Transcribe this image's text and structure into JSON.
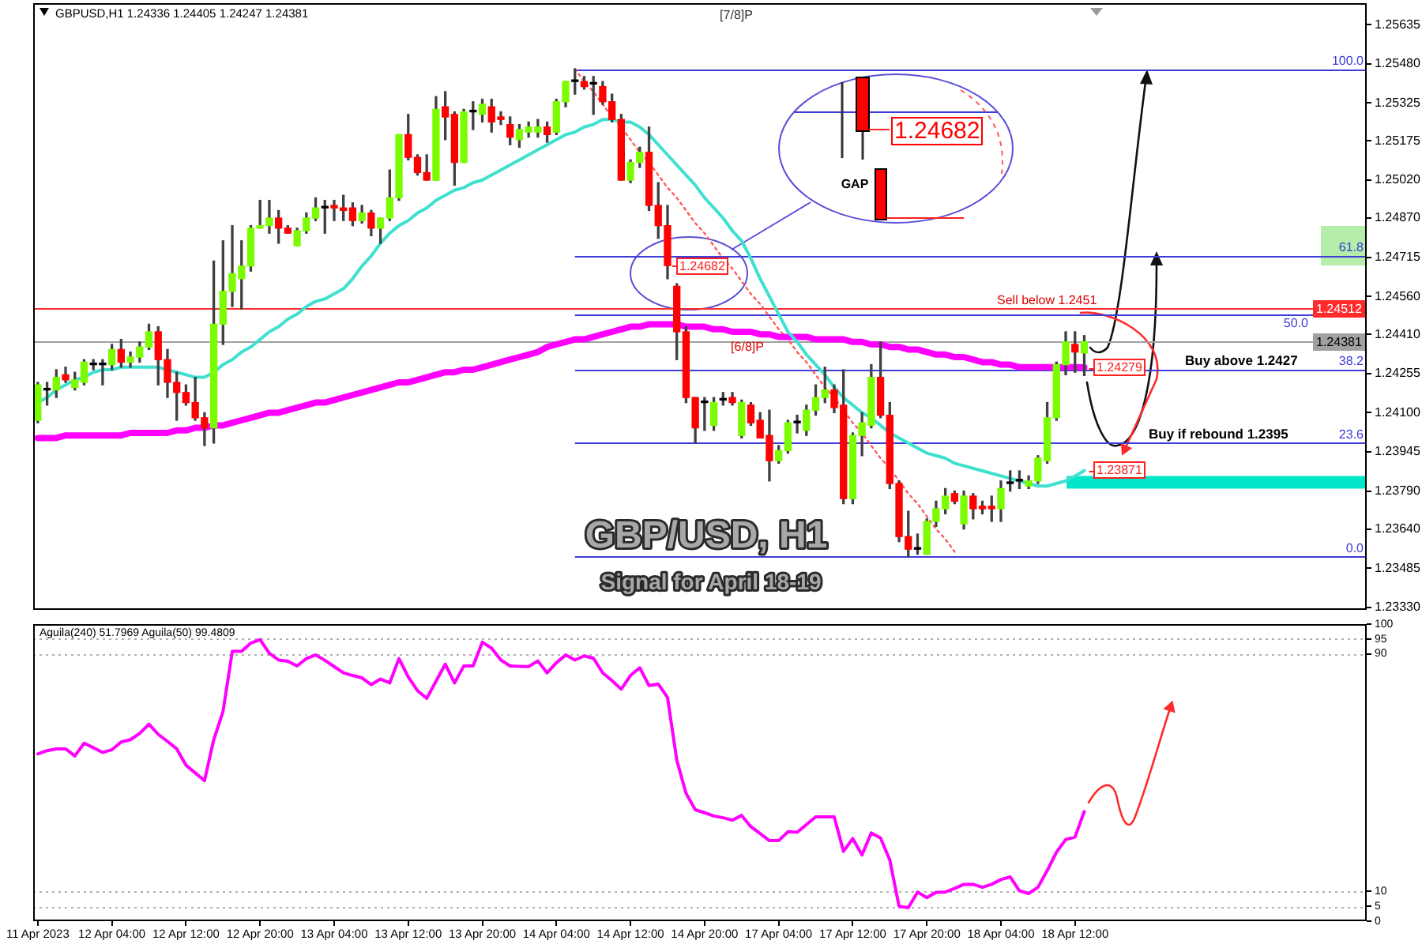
{
  "chart_data": [
    {
      "type": "candlestick",
      "title": "GBP/USD, H1",
      "subtitle": "Signal for April 18-19",
      "tick_labels": "y",
      "categories": [
        null,
        null,
        null,
        null,
        null,
        null,
        null,
        null,
        null,
        null,
        null,
        null,
        null,
        null,
        null,
        null,
        null,
        null,
        null,
        null,
        null,
        null,
        null,
        null,
        null,
        null,
        null,
        null,
        null,
        null,
        null,
        null,
        null,
        null,
        null,
        null,
        null,
        null,
        null,
        null,
        null,
        null,
        null,
        null,
        null,
        null,
        null,
        null,
        null,
        null,
        null,
        null,
        null,
        null,
        null,
        null,
        null,
        null,
        null,
        null,
        null,
        null,
        null,
        null,
        null,
        null,
        null,
        null,
        null,
        null,
        null,
        null,
        null,
        null,
        null,
        null,
        null,
        null,
        null,
        null,
        null,
        null,
        null,
        null,
        null,
        null,
        null,
        null,
        null,
        null,
        null,
        null,
        null,
        null,
        null,
        null,
        null,
        null,
        null,
        null,
        null,
        null,
        null,
        null,
        null,
        null,
        null,
        null,
        null,
        null,
        null,
        null,
        null,
        null,
        null,
        null,
        null,
        null,
        null,
        null,
        null,
        null,
        null,
        null,
        null,
        null,
        null,
        null,
        null,
        null,
        null,
        null,
        null,
        null,
        null,
        null,
        null,
        null,
        null,
        null,
        null,
        null,
        null,
        null
      ],
      "ohlc": [
        [
          1.2407,
          1.2422,
          1.2406,
          1.2421
        ],
        [
          1.2419,
          1.2422,
          1.2413,
          1.2419
        ],
        [
          1.2419,
          1.2427,
          1.2416,
          1.2424
        ],
        [
          1.2425,
          1.2428,
          1.2422,
          1.2423
        ],
        [
          1.242,
          1.2426,
          1.2419,
          1.2423
        ],
        [
          1.2422,
          1.2431,
          1.2421,
          1.243
        ],
        [
          1.2429,
          1.2431,
          1.2427,
          1.2429
        ],
        [
          1.2429,
          1.2431,
          1.2421,
          1.2429
        ],
        [
          1.2429,
          1.2437,
          1.2427,
          1.2435
        ],
        [
          1.2435,
          1.2439,
          1.2428,
          1.243
        ],
        [
          1.243,
          1.2434,
          1.2428,
          1.2432
        ],
        [
          1.2432,
          1.2438,
          1.243,
          1.2436
        ],
        [
          1.2436,
          1.2445,
          1.2435,
          1.2442
        ],
        [
          1.2442,
          1.2444,
          1.2421,
          1.2431
        ],
        [
          1.2431,
          1.2435,
          1.2416,
          1.2422
        ],
        [
          1.2422,
          1.2426,
          1.2407,
          1.2418
        ],
        [
          1.2418,
          1.2421,
          1.2413,
          1.2414
        ],
        [
          1.2414,
          1.2424,
          1.2407,
          1.2408
        ],
        [
          1.2408,
          1.241,
          1.2397,
          1.2404
        ],
        [
          1.2404,
          1.247,
          1.2398,
          1.2445
        ],
        [
          1.2445,
          1.2478,
          1.2437,
          1.2458
        ],
        [
          1.2458,
          1.2484,
          1.2452,
          1.2465
        ],
        [
          1.2463,
          1.2478,
          1.2451,
          1.2468
        ],
        [
          1.2468,
          1.2484,
          1.2466,
          1.2483
        ],
        [
          1.2483,
          1.2494,
          1.2483,
          1.2484
        ],
        [
          1.2484,
          1.2494,
          1.2481,
          1.2487
        ],
        [
          1.2487,
          1.249,
          1.2477,
          1.2483
        ],
        [
          1.2483,
          1.2484,
          1.2481,
          1.2481
        ],
        [
          1.2476,
          1.2483,
          1.2476,
          1.2482
        ],
        [
          1.2482,
          1.2489,
          1.2481,
          1.2487
        ],
        [
          1.2487,
          1.2495,
          1.2486,
          1.2491
        ],
        [
          1.2491,
          1.2494,
          1.2481,
          1.2491
        ],
        [
          1.2492,
          1.2494,
          1.2486,
          1.2491
        ],
        [
          1.2491,
          1.2496,
          1.2486,
          1.249
        ],
        [
          1.2491,
          1.2493,
          1.2484,
          1.2486
        ],
        [
          1.2486,
          1.2492,
          1.2485,
          1.2489
        ],
        [
          1.2489,
          1.249,
          1.248,
          1.2483
        ],
        [
          1.2483,
          1.2487,
          1.2477,
          1.2487
        ],
        [
          1.2487,
          1.2506,
          1.2486,
          1.2495
        ],
        [
          1.2495,
          1.252,
          1.2494,
          1.252
        ],
        [
          1.252,
          1.2528,
          1.251,
          1.2511
        ],
        [
          1.2511,
          1.2512,
          1.2504,
          1.2505
        ],
        [
          1.2505,
          1.2512,
          1.2502,
          1.2502
        ],
        [
          1.2502,
          1.2535,
          1.2502,
          1.253
        ],
        [
          1.2531,
          1.2537,
          1.2518,
          1.2527
        ],
        [
          1.2528,
          1.2529,
          1.25,
          1.2509
        ],
        [
          1.2509,
          1.253,
          1.2509,
          1.2529
        ],
        [
          1.2529,
          1.2533,
          1.2522,
          1.2529
        ],
        [
          1.2528,
          1.2534,
          1.2525,
          1.2532
        ],
        [
          1.2531,
          1.2534,
          1.2521,
          1.2525
        ],
        [
          1.2527,
          1.2529,
          1.2524,
          1.2526
        ],
        [
          1.2524,
          1.2527,
          1.2516,
          1.2519
        ],
        [
          1.2518,
          1.2524,
          1.2515,
          1.2522
        ],
        [
          1.2521,
          1.2525,
          1.2519,
          1.2523
        ],
        [
          1.2521,
          1.2526,
          1.2519,
          1.2523
        ],
        [
          1.2523,
          1.2525,
          1.2517,
          1.252
        ],
        [
          1.2521,
          1.2534,
          1.252,
          1.2533
        ],
        [
          1.2533,
          1.2541,
          1.2531,
          1.2541
        ],
        [
          1.2541,
          1.2546,
          1.2536,
          1.2541
        ],
        [
          1.2541,
          1.2543,
          1.2538,
          1.2539
        ],
        [
          1.254,
          1.2543,
          1.2528,
          1.254
        ],
        [
          1.2539,
          1.2541,
          1.2532,
          1.2533
        ],
        [
          1.2533,
          1.2536,
          1.2525,
          1.2526
        ],
        [
          1.2526,
          1.2528,
          1.2502,
          1.2502
        ],
        [
          1.2502,
          1.251,
          1.2501,
          1.2509
        ],
        [
          1.2509,
          1.2515,
          1.2507,
          1.2513
        ],
        [
          1.2513,
          1.2523,
          1.249,
          1.2492
        ],
        [
          1.2492,
          1.2501,
          1.2479,
          1.2484
        ],
        [
          1.2484,
          1.2492,
          1.2463,
          1.24682
        ],
        [
          1.246,
          1.2461,
          1.2431,
          1.2442
        ],
        [
          1.2442,
          1.2444,
          1.2414,
          1.2416
        ],
        [
          1.2416,
          1.2416,
          1.2398,
          1.2404
        ],
        [
          1.2414,
          1.2416,
          1.2403,
          1.2414
        ],
        [
          1.2405,
          1.2416,
          1.2403,
          1.2414
        ],
        [
          1.2415,
          1.2418,
          1.2413,
          1.2415
        ],
        [
          1.2416,
          1.2418,
          1.2413,
          1.2414
        ],
        [
          1.2401,
          1.2415,
          1.24,
          1.2414
        ],
        [
          1.2413,
          1.2414,
          1.2405,
          1.2406
        ],
        [
          1.2407,
          1.241,
          1.24,
          1.24
        ],
        [
          1.2401,
          1.2411,
          1.2383,
          1.2391
        ],
        [
          1.2391,
          1.2397,
          1.239,
          1.2395
        ],
        [
          1.2395,
          1.2407,
          1.2394,
          1.2406
        ],
        [
          1.2406,
          1.2409,
          1.2402,
          1.2406
        ],
        [
          1.2403,
          1.2413,
          1.2401,
          1.2411
        ],
        [
          1.2411,
          1.2421,
          1.2409,
          1.2416
        ],
        [
          1.2416,
          1.2428,
          1.2414,
          1.2419
        ],
        [
          1.2419,
          1.2421,
          1.241,
          1.2412
        ],
        [
          1.2413,
          1.2427,
          1.2374,
          1.2376
        ],
        [
          1.2376,
          1.2402,
          1.2374,
          1.2401
        ],
        [
          1.2401,
          1.241,
          1.2393,
          1.2406
        ],
        [
          1.2405,
          1.2429,
          1.2404,
          1.2424
        ],
        [
          1.2424,
          1.2438,
          1.2408,
          1.2409
        ],
        [
          1.2409,
          1.2414,
          1.238,
          1.2382
        ],
        [
          1.2382,
          1.2383,
          1.2359,
          1.2361
        ],
        [
          1.2361,
          1.2371,
          1.2353,
          1.2356
        ],
        [
          1.2356,
          1.2362,
          1.2354,
          1.2356
        ],
        [
          1.2354,
          1.2368,
          1.2354,
          1.2367
        ],
        [
          1.2367,
          1.2375,
          1.2365,
          1.2372
        ],
        [
          1.2372,
          1.238,
          1.237,
          1.2377
        ],
        [
          1.2378,
          1.2379,
          1.2374,
          1.2375
        ],
        [
          1.2366,
          1.2379,
          1.2364,
          1.2377
        ],
        [
          1.2377,
          1.2378,
          1.2368,
          1.2372
        ],
        [
          1.2373,
          1.2375,
          1.237,
          1.2372
        ],
        [
          1.2373,
          1.2377,
          1.2367,
          1.2372
        ],
        [
          1.2372,
          1.2383,
          1.2367,
          1.238
        ],
        [
          1.2382,
          1.2387,
          1.2379,
          1.2382
        ],
        [
          1.2383,
          1.2387,
          1.238,
          1.2383
        ],
        [
          1.2381,
          1.2385,
          1.238,
          1.2383
        ],
        [
          1.2383,
          1.2393,
          1.2382,
          1.2392
        ],
        [
          1.2391,
          1.2414,
          1.239,
          1.2408
        ],
        [
          1.2408,
          1.243,
          1.2407,
          1.2429
        ],
        [
          1.2429,
          1.2442,
          1.2425,
          1.2438
        ],
        [
          1.2437,
          1.2442,
          1.2426,
          1.2434
        ],
        [
          1.24336,
          1.24405,
          1.24247,
          1.24381
        ],
        null,
        null,
        null,
        null,
        null,
        null,
        null,
        null,
        null,
        null,
        null,
        null,
        null,
        null,
        null,
        null,
        null,
        null,
        null,
        null,
        null,
        null,
        null,
        null,
        null,
        null,
        null,
        null,
        null,
        null
      ],
      "colors": [
        "#7cfc00",
        "#000000",
        "#7cfc00",
        "#ff0000",
        "#7cfc00",
        "#7cfc00",
        "#000000",
        "#000000",
        "#7cfc00",
        "#ff0000",
        "#7cfc00",
        "#7cfc00",
        "#7cfc00",
        "#ff0000",
        "#ff0000",
        "#ff0000",
        "#ff0000",
        "#ff0000",
        "#ff0000",
        "#7cfc00",
        "#7cfc00",
        "#7cfc00",
        "#7cfc00",
        "#7cfc00",
        "#7cfc00",
        "#7cfc00",
        "#ff0000",
        "#ff0000",
        "#7cfc00",
        "#7cfc00",
        "#7cfc00",
        "#000000",
        "#ff0000",
        "#ff0000",
        "#ff0000",
        "#7cfc00",
        "#ff0000",
        "#7cfc00",
        "#7cfc00",
        "#7cfc00",
        "#ff0000",
        "#ff0000",
        "#ff0000",
        "#7cfc00",
        "#ff0000",
        "#ff0000",
        "#7cfc00",
        "#000000",
        "#7cfc00",
        "#ff0000",
        "#ff0000",
        "#ff0000",
        "#7cfc00",
        "#7cfc00",
        "#7cfc00",
        "#ff0000",
        "#7cfc00",
        "#7cfc00",
        "#000000",
        "#ff0000",
        "#000000",
        "#ff0000",
        "#ff0000",
        "#ff0000",
        "#7cfc00",
        "#7cfc00",
        "#ff0000",
        "#ff0000",
        "#ff0000",
        "#ff0000",
        "#ff0000",
        "#ff0000",
        "#000000",
        "#7cfc00",
        "#000000",
        "#ff0000",
        "#7cfc00",
        "#ff0000",
        "#ff0000",
        "#ff0000",
        "#7cfc00",
        "#7cfc00",
        "#000000",
        "#7cfc00",
        "#7cfc00",
        "#7cfc00",
        "#ff0000",
        "#ff0000",
        "#7cfc00",
        "#7cfc00",
        "#7cfc00",
        "#ff0000",
        "#ff0000",
        "#ff0000",
        "#ff0000",
        "#000000",
        "#7cfc00",
        "#7cfc00",
        "#7cfc00",
        "#ff0000",
        "#7cfc00",
        "#ff0000",
        "#ff0000",
        "#ff0000",
        "#7cfc00",
        "#000000",
        "#000000",
        "#7cfc00",
        "#7cfc00",
        "#7cfc00",
        "#7cfc00",
        "#7cfc00",
        "#ff0000",
        "#7cfc00",
        null,
        null,
        null,
        null,
        null,
        null,
        null,
        null,
        null,
        null,
        null,
        null,
        null,
        null,
        null,
        null,
        null,
        null,
        null,
        null,
        null,
        null,
        null,
        null,
        null,
        null,
        null,
        null,
        null,
        null
      ],
      "series": [
        {
          "type": "line",
          "color": "#40e0d0",
          "values": [
            1.2414,
            1.2416,
            1.2419,
            1.2421,
            1.2423,
            1.2424,
            1.2426,
            1.2427,
            1.2427,
            1.2428,
            1.2428,
            1.2428,
            1.2428,
            1.2428,
            1.2427,
            1.2426,
            1.2425,
            1.2424,
            1.2424,
            1.2426,
            1.2429,
            1.2431,
            1.2434,
            1.2436,
            1.2439,
            1.2442,
            1.2444,
            1.2447,
            1.2449,
            1.2452,
            1.2454,
            1.2455,
            1.2457,
            1.2459,
            1.2463,
            1.2468,
            1.2472,
            1.2477,
            1.2481,
            1.2484,
            1.2486,
            1.2489,
            1.2491,
            1.2494,
            1.2496,
            1.2498,
            1.2499,
            1.2501,
            1.2502,
            1.2504,
            1.2506,
            1.2508,
            1.251,
            1.2512,
            1.2514,
            1.2516,
            1.2518,
            1.252,
            1.2521,
            1.2523,
            1.2524,
            1.2526,
            1.2526,
            1.2525,
            1.2525,
            1.2523,
            1.252,
            1.2516,
            1.2512,
            1.2508,
            1.2504,
            1.25,
            1.2495,
            1.2491,
            1.2487,
            1.2482,
            1.2478,
            1.2471,
            1.2463,
            1.2456,
            1.2449,
            1.2442,
            1.2438,
            1.2433,
            1.2429,
            1.2425,
            1.242,
            1.2416,
            1.2413,
            1.241,
            1.2408,
            1.2405,
            1.2402,
            1.24,
            1.2398,
            1.2396,
            1.2394,
            1.2393,
            1.2392,
            1.239,
            1.2389,
            1.2388,
            1.2387,
            1.2386,
            1.2385,
            1.2384,
            1.2383,
            1.2382,
            1.2381,
            1.2381,
            1.2382,
            1.2383,
            1.2385,
            1.23871,
            null,
            null,
            null,
            null,
            null,
            null,
            null,
            null,
            null,
            null,
            null,
            null,
            null,
            null,
            null,
            null,
            null,
            null,
            null,
            null,
            null,
            null,
            null,
            null,
            null,
            null,
            null,
            null,
            null,
            null
          ]
        },
        {
          "type": "line",
          "color": "#ff00ff",
          "values": [
            1.24,
            1.24,
            1.24,
            1.2401,
            1.2401,
            1.2401,
            1.2401,
            1.2401,
            1.2401,
            1.2401,
            1.2402,
            1.2402,
            1.2402,
            1.2402,
            1.2402,
            1.2403,
            1.2403,
            1.2404,
            1.2404,
            1.2405,
            1.2405,
            1.2406,
            1.2407,
            1.2408,
            1.2409,
            1.241,
            1.241,
            1.2411,
            1.2412,
            1.2413,
            1.2414,
            1.2414,
            1.2415,
            1.2416,
            1.2417,
            1.2418,
            1.2419,
            1.242,
            1.2421,
            1.2422,
            1.2422,
            1.2423,
            1.2424,
            1.2425,
            1.2426,
            1.2426,
            1.2427,
            1.2427,
            1.2428,
            1.2429,
            1.243,
            1.2431,
            1.2432,
            1.2433,
            1.2434,
            1.2436,
            1.2437,
            1.2438,
            1.2439,
            1.2439,
            1.244,
            1.2441,
            1.2442,
            1.2443,
            1.2444,
            1.2444,
            1.2445,
            1.2445,
            1.2445,
            1.2445,
            1.2444,
            1.2444,
            1.2444,
            1.2443,
            1.2443,
            1.2442,
            1.2442,
            1.2442,
            1.2441,
            1.2441,
            1.244,
            1.244,
            1.244,
            1.244,
            1.2439,
            1.2439,
            1.2439,
            1.2439,
            1.2438,
            1.2438,
            1.2437,
            1.2437,
            1.2436,
            1.2436,
            1.2435,
            1.2435,
            1.2434,
            1.2433,
            1.2433,
            1.2432,
            1.2432,
            1.2431,
            1.243,
            1.243,
            1.2429,
            1.2429,
            1.2428,
            1.2428,
            1.2428,
            1.2428,
            1.2428,
            1.2428,
            1.2428,
            1.24279,
            null,
            null,
            null,
            null,
            null,
            null,
            null,
            null,
            null,
            null,
            null,
            null,
            null,
            null,
            null,
            null,
            null,
            null,
            null,
            null,
            null,
            null,
            null,
            null,
            null,
            null,
            null,
            null,
            null,
            null
          ]
        },
        {
          "type": "line",
          "color": "#ff5a5a",
          "line_style": "dotted",
          "values": [
            null,
            null,
            null,
            null,
            null,
            null,
            null,
            null,
            null,
            null,
            null,
            null,
            null,
            null,
            null,
            null,
            null,
            null,
            null,
            null,
            null,
            null,
            null,
            null,
            null,
            null,
            null,
            null,
            null,
            null,
            null,
            null,
            null,
            null,
            null,
            null,
            null,
            null,
            null,
            null,
            null,
            null,
            null,
            null,
            null,
            null,
            null,
            null,
            null,
            null,
            null,
            null,
            null,
            null,
            null,
            null,
            null,
            null,
            1.2546,
            1.2541,
            1.2537,
            1.2532,
            1.2527,
            1.2523,
            1.2518,
            1.2513,
            1.2509,
            1.2504,
            1.2499,
            1.2495,
            1.249,
            1.2485,
            1.2481,
            1.2476,
            1.2471,
            1.2467,
            1.2462,
            1.2457,
            1.2453,
            1.2448,
            1.2443,
            1.2439,
            1.2434,
            1.243,
            1.2425,
            1.242,
            1.2416,
            1.2411,
            1.2406,
            1.2402,
            1.2397,
            1.2392,
            1.2388,
            1.2383,
            1.2378,
            1.2374,
            1.2369,
            1.2364,
            1.236,
            1.2355,
            null,
            null,
            null,
            null,
            null,
            null,
            null,
            null,
            null,
            null,
            null,
            null,
            null,
            null,
            null,
            null,
            null,
            null,
            null,
            null,
            null,
            null,
            null,
            null,
            null,
            null,
            null,
            null,
            null,
            null,
            null,
            null,
            null,
            null,
            null,
            null,
            null,
            null,
            null,
            null,
            null,
            null,
            null,
            null
          ]
        }
      ],
      "ylim": [
        1.2332,
        1.2572
      ],
      "yticks": [
        {
          "value": 1.2333,
          "label": "1.23330"
        },
        1.23485,
        {
          "value": 1.2364,
          "label": "1.23640"
        },
        {
          "value": 1.2379,
          "label": "1.23790"
        },
        1.23945,
        {
          "value": 1.241,
          "label": "1.24100"
        },
        1.24255,
        {
          "value": 1.2441,
          "label": "1.24410"
        },
        {
          "value": 1.2456,
          "label": "1.24560"
        },
        1.24715,
        {
          "value": 1.2487,
          "label": "1.24870"
        },
        {
          "value": 1.2502,
          "label": "1.25020"
        },
        1.25175,
        1.25325,
        {
          "value": 1.2548,
          "label": "1.25480"
        },
        1.25635
      ],
      "ref_lines": [
        {
          "axis": "y",
          "value": 1.2546,
          "color": "#3d3dd8"
        },
        {
          "axis": "y",
          "value": 1.2472,
          "color": "#3d3dd8"
        },
        {
          "axis": "y",
          "value": 1.2449,
          "color": "#3d3dd8"
        },
        {
          "axis": "y",
          "value": 1.2427,
          "color": "#3d3dd8"
        },
        {
          "axis": "y",
          "value": 1.2398,
          "color": "#3d3dd8"
        },
        {
          "axis": "y",
          "value": 1.2353,
          "color": "#3d3dd8"
        },
        {
          "axis": "y",
          "value": 1.24512,
          "label": "1.24512",
          "color": "#ff2a2a"
        },
        {
          "axis": "y",
          "value": 1.24381,
          "label": "1.24381",
          "color": "#a0a0a0"
        }
      ],
      "bands": [
        {
          "axis": "y",
          "from": 1.238,
          "to": 1.2385,
          "color": "#00e6c8"
        }
      ],
      "annotations": [
        "GBPUSD,H1 1.24336 1.24405 1.24247 1.24381",
        "[7/8]P",
        "[6/8]P",
        {
          "text": "1.24682",
          "y": 1.24682
        },
        "1.24682",
        "GAP",
        {
          "text": "Sell below 1.2451",
          "y": 1.24512
        },
        {
          "text": "Buy above 1.2427",
          "y": 1.2427
        },
        {
          "text": "Buy if rebound 1.2395",
          "y": 1.2398
        },
        {
          "text": "1.24279",
          "y": 1.24279
        },
        {
          "text": "1.23871",
          "y": 1.23871
        },
        {
          "text": "100.0",
          "y": 1.2546
        },
        {
          "text": "61.8",
          "y": 1.2472
        },
        {
          "text": "50.0",
          "y": 1.2449
        },
        {
          "text": "38.2",
          "y": 1.2427
        },
        {
          "text": "23.6",
          "y": 1.2398
        },
        {
          "text": "0.0",
          "y": 1.2353
        }
      ]
    },
    {
      "type": "line",
      "title": "Aguila(240) 51.7969 Aguila(50) 99.4809",
      "categories": [
        "11 Apr 2023",
        null,
        null,
        null,
        null,
        null,
        null,
        null,
        "12 Apr 04:00",
        null,
        null,
        null,
        null,
        null,
        null,
        null,
        "12 Apr 12:00",
        null,
        null,
        null,
        null,
        null,
        null,
        null,
        "12 Apr 20:00",
        null,
        null,
        null,
        null,
        null,
        null,
        null,
        "13 Apr 04:00",
        null,
        null,
        null,
        null,
        null,
        null,
        null,
        "13 Apr 12:00",
        null,
        null,
        null,
        null,
        null,
        null,
        null,
        "13 Apr 20:00",
        null,
        null,
        null,
        null,
        null,
        null,
        null,
        "14 Apr 04:00",
        null,
        null,
        null,
        null,
        null,
        null,
        null,
        "14 Apr 12:00",
        null,
        null,
        null,
        null,
        null,
        null,
        null,
        "14 Apr 20:00",
        null,
        null,
        null,
        null,
        null,
        null,
        null,
        "17 Apr 04:00",
        null,
        null,
        null,
        null,
        null,
        null,
        null,
        "17 Apr 12:00",
        null,
        null,
        null,
        null,
        null,
        null,
        null,
        "17 Apr 20:00",
        null,
        null,
        null,
        null,
        null,
        null,
        null,
        "18 Apr 04:00",
        null,
        null,
        null,
        null,
        null,
        null,
        null,
        "18 Apr 12:00",
        null,
        null,
        null,
        null,
        null,
        null,
        null,
        null,
        null,
        null,
        null,
        null,
        null,
        null,
        null,
        null,
        null,
        null,
        null,
        null,
        null,
        null,
        null,
        null,
        null,
        null,
        null,
        null,
        null,
        null,
        null
      ],
      "series": [
        {
          "color": "#ff00ff",
          "values": [
            56.3,
            57.4,
            58.0,
            58.0,
            55.6,
            59.9,
            58.4,
            56.8,
            57.7,
            60.3,
            61.1,
            63.2,
            66.3,
            62.9,
            60.5,
            58.0,
            52.5,
            49.9,
            47.3,
            61.1,
            70.6,
            90.8,
            90.8,
            93.6,
            94.8,
            90.2,
            87.9,
            87.5,
            85.9,
            88.4,
            89.6,
            87.8,
            85.7,
            83.6,
            82.7,
            81.9,
            79.6,
            81.5,
            80.2,
            88.4,
            82.2,
            77.6,
            75.0,
            80.8,
            86.5,
            80.2,
            85.9,
            85.9,
            93.9,
            91.9,
            87.9,
            85.9,
            85.8,
            85.7,
            87.6,
            83.6,
            87.0,
            89.6,
            87.9,
            89.3,
            88.5,
            83.6,
            81.0,
            78.1,
            82.7,
            85.3,
            79.3,
            79.8,
            75.3,
            54.2,
            43.0,
            37.5,
            36.5,
            35.4,
            34.8,
            34.0,
            35.6,
            31.8,
            29.5,
            27.1,
            27.1,
            30.1,
            29.9,
            32.5,
            35.1,
            35.1,
            35.1,
            23.5,
            27.8,
            22.3,
            29.7,
            28.0,
            20.6,
            5.0,
            4.5,
            9.8,
            7.9,
            9.7,
            9.8,
            11.0,
            12.4,
            12.4,
            11.4,
            12.4,
            14.0,
            14.9,
            10.2,
            9.3,
            11.4,
            17.0,
            23.2,
            27.5,
            28.3,
            36.9,
            null,
            null,
            null,
            null,
            null,
            null,
            null,
            null,
            null,
            null,
            null,
            null,
            null,
            null,
            null,
            null,
            null,
            null,
            null,
            null,
            null,
            null,
            null,
            null,
            null,
            null,
            null,
            null,
            null,
            null
          ]
        }
      ],
      "ylim": [
        0,
        100
      ],
      "yticks": [
        0,
        5,
        10,
        90,
        95,
        100
      ],
      "ref_lines": [
        {
          "axis": "y",
          "value": 95,
          "color": "#b0b0b0",
          "line_style": "dotted"
        },
        {
          "axis": "y",
          "value": 90,
          "color": "#b0b0b0",
          "line_style": "dotted"
        },
        {
          "axis": "y",
          "value": 10,
          "color": "#b0b0b0",
          "line_style": "dotted"
        },
        {
          "axis": "y",
          "value": 5,
          "color": "#b0b0b0",
          "line_style": "dotted"
        }
      ]
    }
  ]
}
